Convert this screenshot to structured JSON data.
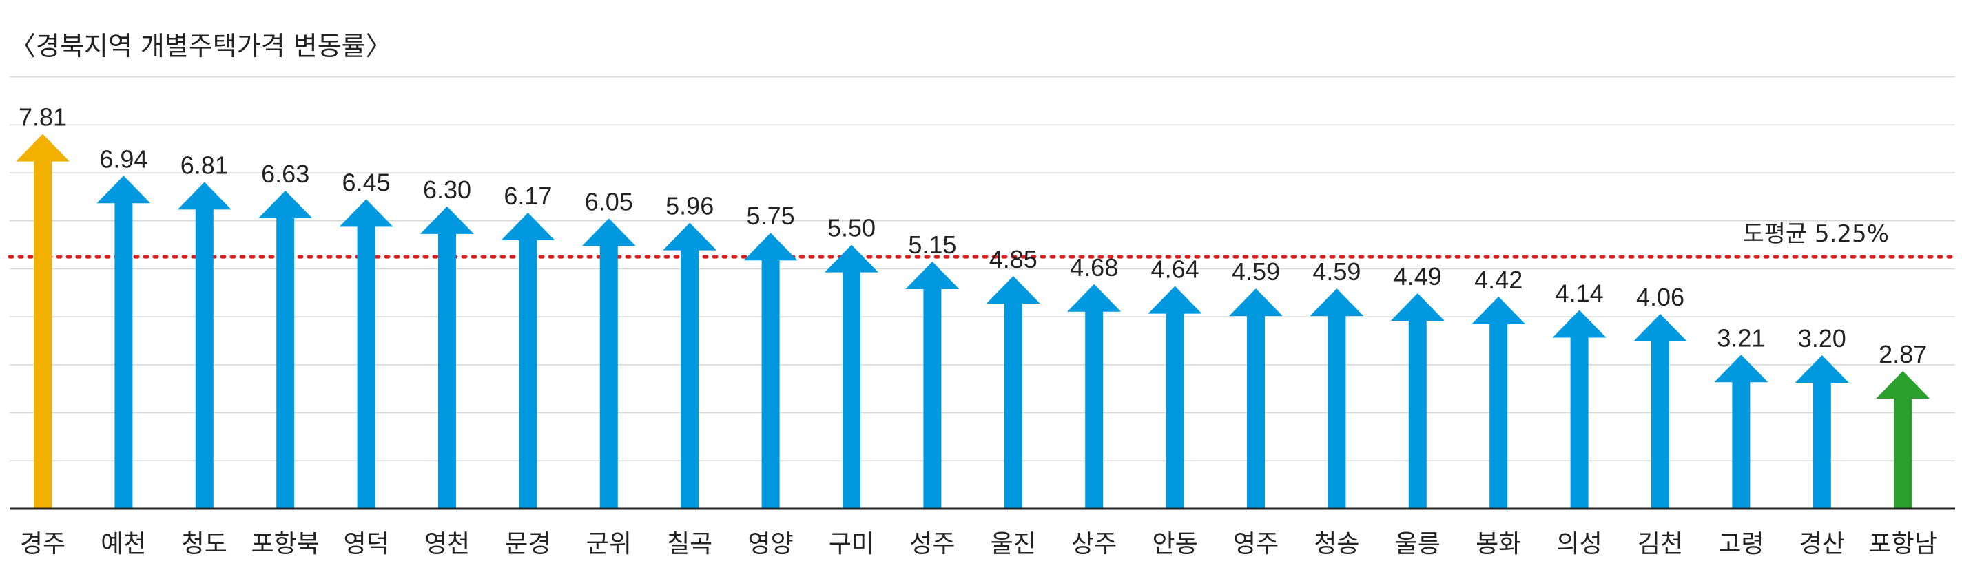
{
  "chart_data": {
    "type": "bar",
    "title": "〈경북지역 개별주택가격 변동률〉",
    "categories": [
      "경주",
      "예천",
      "청도",
      "포항북",
      "영덕",
      "영천",
      "문경",
      "군위",
      "칠곡",
      "영양",
      "구미",
      "성주",
      "울진",
      "상주",
      "안동",
      "영주",
      "청송",
      "울릉",
      "봉화",
      "의성",
      "김천",
      "고령",
      "경산",
      "포항남"
    ],
    "values": [
      7.81,
      6.94,
      6.81,
      6.63,
      6.45,
      6.3,
      6.17,
      6.05,
      5.96,
      5.75,
      5.5,
      5.15,
      4.85,
      4.68,
      4.64,
      4.59,
      4.59,
      4.49,
      4.42,
      4.14,
      4.06,
      3.21,
      3.2,
      2.87
    ],
    "value_labels": [
      "7.81",
      "6.94",
      "6.81",
      "6.63",
      "6.45",
      "6.30",
      "6.17",
      "6.05",
      "5.96",
      "5.75",
      "5.50",
      "5.15",
      "4.85",
      "4.68",
      "4.64",
      "4.59",
      "4.59",
      "4.49",
      "4.42",
      "4.14",
      "4.06",
      "3.21",
      "3.20",
      "2.87"
    ],
    "average": {
      "value": 5.25,
      "label": "도평균 5.25%",
      "color": "#e02020"
    },
    "ylim": [
      0,
      9
    ],
    "grid": true,
    "colors": {
      "default": "#0099e0",
      "highest": "#f2b000",
      "lowest": "#2ca02c"
    },
    "highlight": {
      "highest_index": 0,
      "lowest_index": 23
    },
    "xlabel": "",
    "ylabel": ""
  }
}
